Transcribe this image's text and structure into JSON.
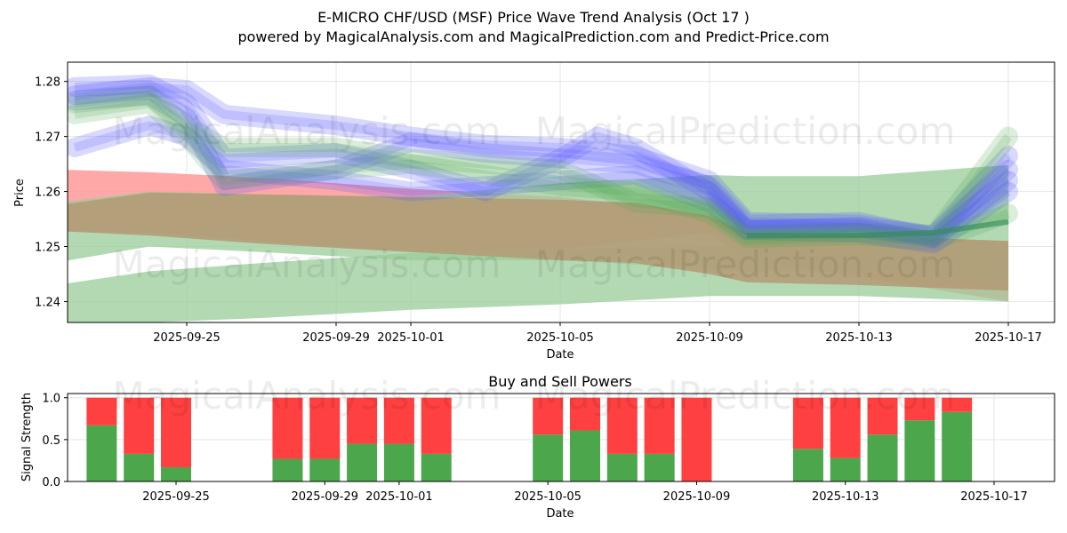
{
  "header": {
    "title": "E-MICRO CHF/USD (MSF) Price Wave Trend Analysis (Oct 17 )",
    "subtitle": "powered by MagicalAnalysis.com and MagicalPrediction.com and Predict-Price.com"
  },
  "watermarks": {
    "left": "MagicalAnalysis.com",
    "right": "MagicalPrediction.com"
  },
  "colors": {
    "red": "#ff4040",
    "green": "#4ca64c",
    "blue": "#5050ff",
    "band_red": "#ff9999",
    "band_green": "#99cc99",
    "band_brown": "#b39c78",
    "grid": "#e6e6e6"
  },
  "chart_data": [
    {
      "type": "area",
      "title": "",
      "xlabel": "Date",
      "ylabel": "Price",
      "ylim": [
        1.2362,
        1.2835
      ],
      "xlim": [
        "2025-09-21",
        "2025-10-17"
      ],
      "grid": true,
      "x_ticks": [
        "2025-09-25",
        "2025-09-29",
        "2025-10-01",
        "2025-10-05",
        "2025-10-09",
        "2025-10-13",
        "2025-10-17"
      ],
      "y_ticks": [
        1.24,
        1.25,
        1.26,
        1.27,
        1.28
      ],
      "bands": [
        {
          "name": "red band",
          "color": "band_red",
          "x": [
            "2025-09-21",
            "2025-09-24",
            "2025-09-27",
            "2025-10-01",
            "2025-10-05",
            "2025-10-09",
            "2025-10-10",
            "2025-10-13",
            "2025-10-17"
          ],
          "upper": [
            1.2641,
            1.2635,
            1.2625,
            1.2605,
            1.259,
            1.256,
            1.2525,
            1.252,
            1.251
          ],
          "lower": [
            1.2528,
            1.2525,
            1.251,
            1.249,
            1.2495,
            1.2525,
            1.2475,
            1.2445,
            1.24
          ]
        },
        {
          "name": "green band upper",
          "color": "band_green",
          "x": [
            "2025-09-21",
            "2025-09-24",
            "2025-09-27",
            "2025-10-01",
            "2025-10-05",
            "2025-10-09",
            "2025-10-10",
            "2025-10-13",
            "2025-10-17"
          ],
          "upper": [
            1.2575,
            1.26,
            1.2595,
            1.259,
            1.2615,
            1.263,
            1.2628,
            1.2628,
            1.2648
          ],
          "lower": [
            1.2465,
            1.25,
            1.249,
            1.2475,
            1.2475,
            1.246,
            1.2455,
            1.246,
            1.243
          ]
        },
        {
          "name": "green band lower",
          "color": "band_green",
          "x": [
            "2025-09-21",
            "2025-09-24",
            "2025-09-27",
            "2025-10-01",
            "2025-10-05",
            "2025-10-09",
            "2025-10-10",
            "2025-10-13",
            "2025-10-17"
          ],
          "upper": [
            1.2425,
            1.2455,
            1.247,
            1.2488,
            1.2495,
            1.25,
            1.25,
            1.2505,
            1.25
          ],
          "lower": [
            1.2362,
            1.2362,
            1.237,
            1.2385,
            1.2395,
            1.241,
            1.241,
            1.241,
            1.24
          ]
        },
        {
          "name": "brown overlap band",
          "color": "band_brown",
          "x": [
            "2025-09-21",
            "2025-09-24",
            "2025-09-27",
            "2025-10-01",
            "2025-10-05",
            "2025-10-07",
            "2025-10-09",
            "2025-10-10",
            "2025-10-13",
            "2025-10-17"
          ],
          "upper": [
            1.257,
            1.2598,
            1.2595,
            1.259,
            1.2585,
            1.258,
            1.2555,
            1.2525,
            1.252,
            1.251
          ],
          "lower": [
            1.253,
            1.252,
            1.2505,
            1.249,
            1.2475,
            1.247,
            1.245,
            1.2435,
            1.243,
            1.242
          ]
        }
      ],
      "wave_lines": [
        {
          "color": "blue",
          "x": [
            "2025-09-22",
            "2025-09-24",
            "2025-09-25",
            "2025-09-26",
            "2025-09-29",
            "2025-10-01",
            "2025-10-03",
            "2025-10-05",
            "2025-10-07",
            "2025-10-09",
            "2025-10-10",
            "2025-10-13",
            "2025-10-15",
            "2025-10-17"
          ],
          "y": [
            1.2775,
            1.279,
            1.2785,
            1.274,
            1.272,
            1.27,
            1.2685,
            1.268,
            1.2665,
            1.262,
            1.2545,
            1.254,
            1.252,
            1.264
          ]
        },
        {
          "color": "blue",
          "x": [
            "2025-09-22",
            "2025-09-24",
            "2025-09-25",
            "2025-09-26",
            "2025-09-29",
            "2025-10-01",
            "2025-10-03",
            "2025-10-05",
            "2025-10-07",
            "2025-10-09",
            "2025-10-10",
            "2025-10-13",
            "2025-10-15",
            "2025-10-17"
          ],
          "y": [
            1.2765,
            1.2775,
            1.2735,
            1.261,
            1.264,
            1.269,
            1.267,
            1.266,
            1.265,
            1.261,
            1.254,
            1.2545,
            1.2515,
            1.262
          ]
        },
        {
          "color": "blue",
          "x": [
            "2025-09-22",
            "2025-09-24",
            "2025-09-25",
            "2025-09-26",
            "2025-09-29",
            "2025-10-01",
            "2025-10-03",
            "2025-10-05",
            "2025-10-06",
            "2025-10-07",
            "2025-10-09",
            "2025-10-10",
            "2025-10-13",
            "2025-10-15",
            "2025-10-17"
          ],
          "y": [
            1.279,
            1.2795,
            1.276,
            1.266,
            1.267,
            1.264,
            1.26,
            1.266,
            1.27,
            1.268,
            1.26,
            1.253,
            1.2535,
            1.252,
            1.2665
          ]
        },
        {
          "color": "blue",
          "x": [
            "2025-09-22",
            "2025-09-24",
            "2025-09-25",
            "2025-09-26",
            "2025-09-29",
            "2025-10-01",
            "2025-10-03",
            "2025-10-05",
            "2025-10-07",
            "2025-10-09",
            "2025-10-10",
            "2025-10-13",
            "2025-10-15",
            "2025-10-17"
          ],
          "y": [
            1.268,
            1.272,
            1.27,
            1.264,
            1.262,
            1.26,
            1.261,
            1.262,
            1.263,
            1.258,
            1.253,
            1.2525,
            1.2505,
            1.26
          ]
        },
        {
          "color": "green",
          "x": [
            "2025-09-22",
            "2025-09-24",
            "2025-09-25",
            "2025-09-26",
            "2025-09-29",
            "2025-10-01",
            "2025-10-03",
            "2025-10-05",
            "2025-10-07",
            "2025-10-09",
            "2025-10-10",
            "2025-10-13",
            "2025-10-15",
            "2025-10-17"
          ],
          "y": [
            1.276,
            1.2775,
            1.272,
            1.268,
            1.268,
            1.266,
            1.265,
            1.264,
            1.258,
            1.257,
            1.252,
            1.2525,
            1.252,
            1.27
          ]
        },
        {
          "color": "green",
          "x": [
            "2025-09-22",
            "2025-09-24",
            "2025-09-25",
            "2025-09-26",
            "2025-09-29",
            "2025-10-01",
            "2025-10-03",
            "2025-10-05",
            "2025-10-07",
            "2025-10-09",
            "2025-10-10",
            "2025-10-13",
            "2025-10-15",
            "2025-10-17"
          ],
          "y": [
            1.274,
            1.276,
            1.27,
            1.262,
            1.264,
            1.265,
            1.263,
            1.261,
            1.26,
            1.256,
            1.2515,
            1.252,
            1.251,
            1.256
          ]
        }
      ],
      "forecast_line": {
        "color": "green",
        "x": [
          "2025-10-10",
          "2025-10-13",
          "2025-10-15",
          "2025-10-17"
        ],
        "y": [
          1.252,
          1.252,
          1.2525,
          1.2545
        ]
      }
    },
    {
      "type": "bar",
      "title": "Buy and Sell Powers",
      "xlabel": "Date",
      "ylabel": "Signal Strength",
      "ylim": [
        0,
        1.05
      ],
      "grid": true,
      "x_ticks": [
        "2025-09-25",
        "2025-09-29",
        "2025-10-01",
        "2025-10-05",
        "2025-10-09",
        "2025-10-13",
        "2025-10-17"
      ],
      "y_ticks": [
        0.0,
        0.5,
        1.0
      ],
      "categories": [
        "2025-09-23",
        "2025-09-24",
        "2025-09-25",
        "2025-09-28",
        "2025-09-29",
        "2025-09-30",
        "2025-10-01",
        "2025-10-02",
        "2025-10-05",
        "2025-10-06",
        "2025-10-07",
        "2025-10-08",
        "2025-10-09",
        "2025-10-12",
        "2025-10-13",
        "2025-10-14",
        "2025-10-15",
        "2025-10-16"
      ],
      "series": [
        {
          "name": "Buy",
          "color": "green",
          "values": [
            0.67,
            0.33,
            0.17,
            0.27,
            0.27,
            0.45,
            0.45,
            0.33,
            0.56,
            0.61,
            0.33,
            0.33,
            0.0,
            0.39,
            0.28,
            0.56,
            0.73,
            0.83
          ]
        },
        {
          "name": "Sell",
          "color": "red",
          "values": [
            0.33,
            0.67,
            0.83,
            0.73,
            0.73,
            0.55,
            0.55,
            0.67,
            0.44,
            0.39,
            0.67,
            0.67,
            1.0,
            0.61,
            0.72,
            0.44,
            0.27,
            0.17
          ]
        }
      ]
    }
  ]
}
